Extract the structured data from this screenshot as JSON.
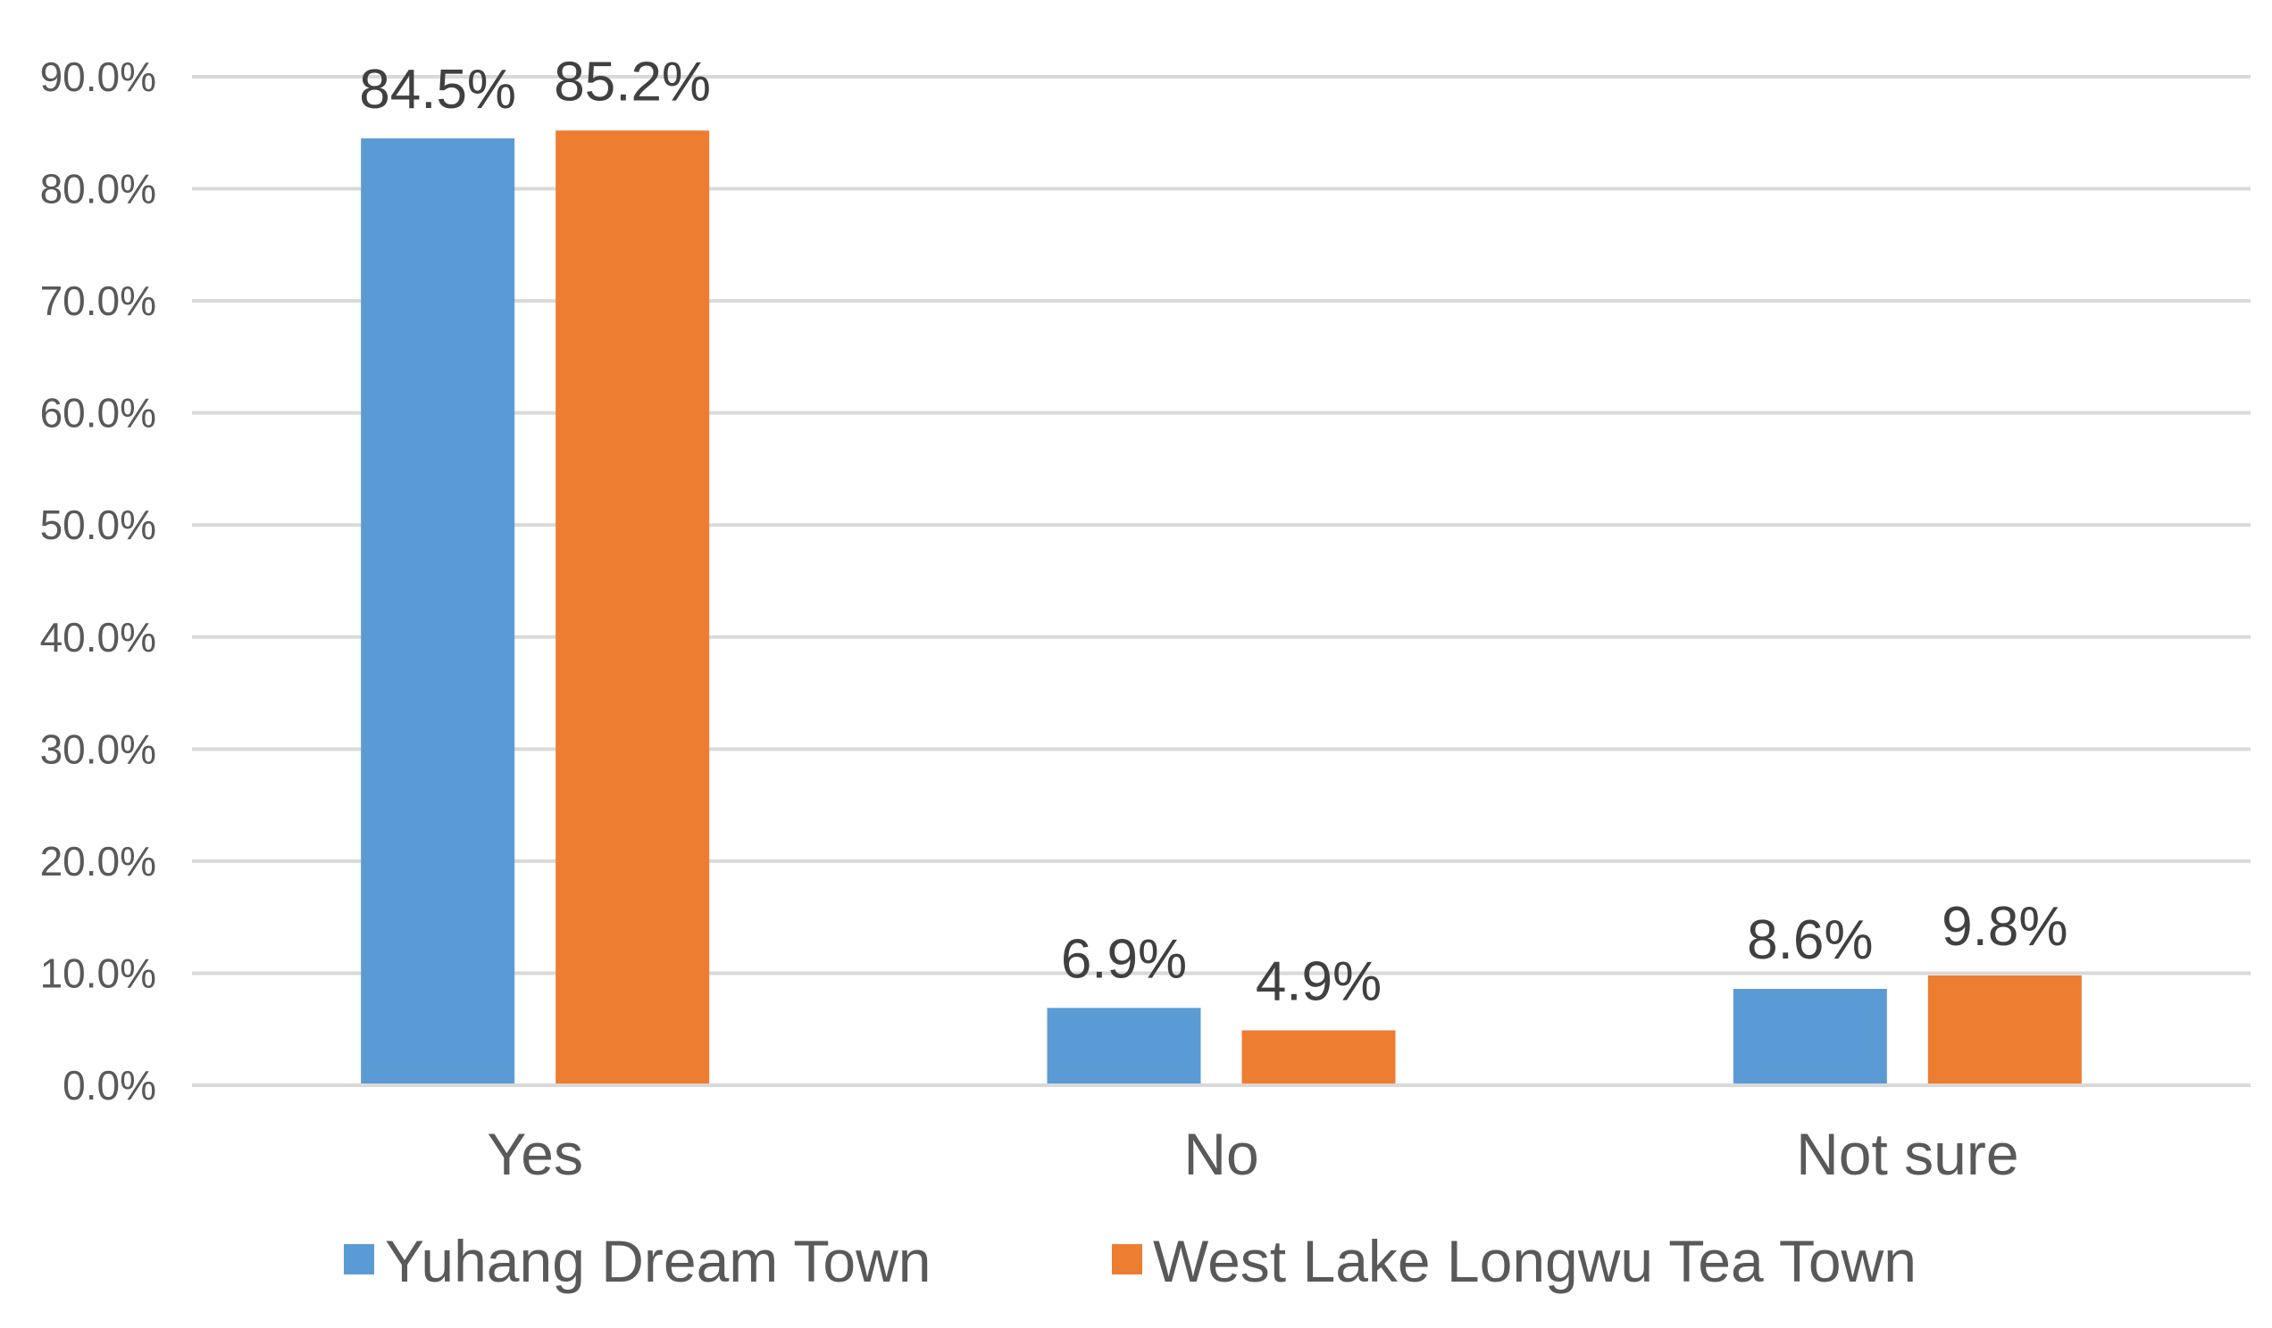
{
  "chart_data": {
    "type": "bar",
    "categories": [
      "Yes",
      "No",
      "Not sure"
    ],
    "series": [
      {
        "name": "Yuhang Dream Town",
        "values": [
          84.5,
          6.9,
          8.6
        ],
        "labels": [
          "84.5%",
          "6.9%",
          "8.6%"
        ],
        "color": "#5b9bd5"
      },
      {
        "name": "West Lake Longwu Tea Town",
        "values": [
          85.2,
          4.9,
          9.8
        ],
        "labels": [
          "85.2%",
          "4.9%",
          "9.8%"
        ],
        "color": "#ed7d31"
      }
    ],
    "ylim": [
      0,
      90
    ],
    "yticks": [
      0,
      10,
      20,
      30,
      40,
      50,
      60,
      70,
      80,
      90
    ],
    "ytick_labels": [
      "0.0%",
      "10.0%",
      "20.0%",
      "30.0%",
      "40.0%",
      "50.0%",
      "60.0%",
      "70.0%",
      "80.0%",
      "90.0%"
    ],
    "title": "",
    "xlabel": "",
    "ylabel": "",
    "grid": true,
    "legend_position": "bottom",
    "gridline_color": "#d9d9d9"
  }
}
